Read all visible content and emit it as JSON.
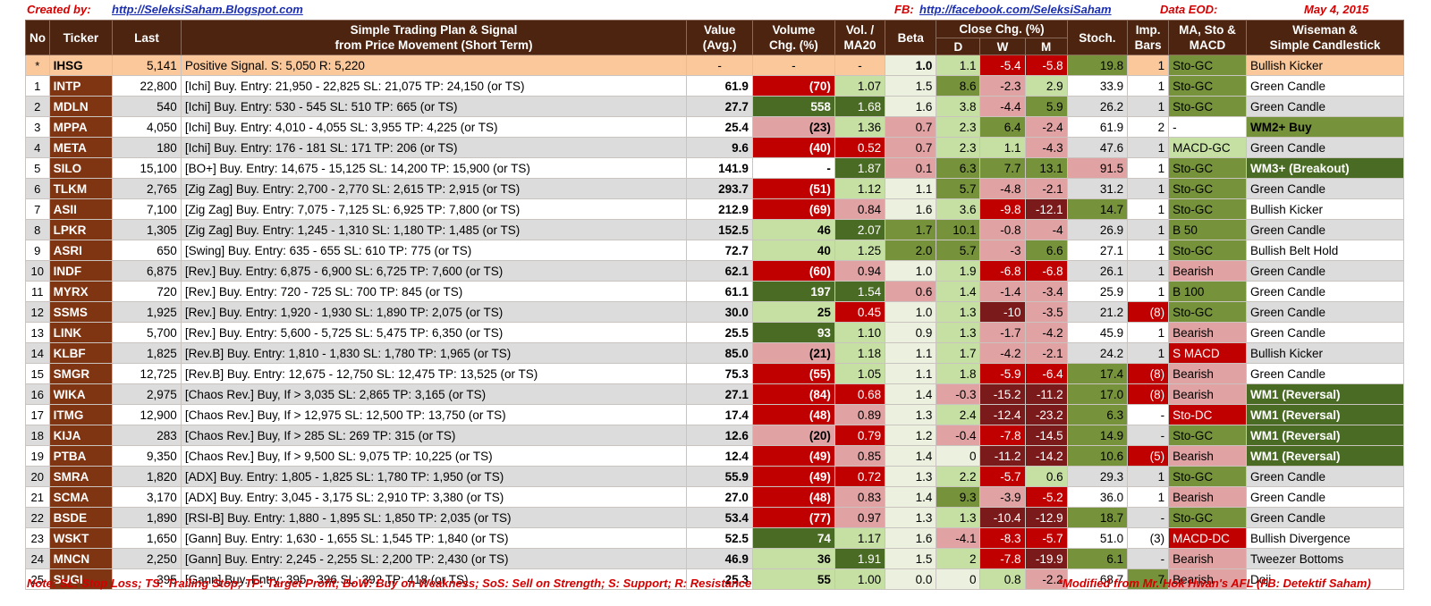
{
  "header": {
    "created_label": "Created by:",
    "blog_link": "http://SeleksiSaham.Blogspot.com",
    "fb_label": "FB:",
    "fb_link": "http://facebook.com/SeleksiSaham",
    "data_label": "Data EOD:",
    "date": "May 4, 2015"
  },
  "columns": {
    "no": "No",
    "ticker": "Ticker",
    "last": "Last",
    "plan1": "Simple Trading Plan & Signal",
    "plan2": "from Price Movement (Short Term)",
    "value1": "Value",
    "value2": "(Avg.)",
    "volume1": "Volume",
    "volume2": "Chg. (%)",
    "vol1": "Vol. /",
    "vol2": "MA20",
    "beta": "Beta",
    "close": "Close Chg. (%)",
    "d": "D",
    "w": "W",
    "m": "M",
    "stoch": "Stoch.",
    "imp1": "Imp.",
    "imp2": "Bars",
    "ma1": "MA, Sto &",
    "ma2": "MACD",
    "wise1": "Wiseman  &",
    "wise2": "Simple Candlestick"
  },
  "colors": {
    "header_bg": "#4d2410",
    "ticker_bg": "#7f3412",
    "index_bg": "#fac89a",
    "red_strong": "#c00000",
    "red_mid": "#e0a2a2",
    "dark_red": "#7a1a1a",
    "green_strong": "#4a6b24",
    "green_mid": "#76933c",
    "green_light": "#c6e0a4",
    "green_lighter": "#ebf1de",
    "row_alt": "#dcdcdc"
  },
  "rows": [
    {
      "no": "*",
      "ticker": "IHSG",
      "last": "5,141",
      "plan": "Positive Signal.  S:  5,050  R:  5,220",
      "value": "-",
      "volume": "-",
      "vol": "-",
      "beta": "1.0",
      "d": "1.1",
      "w": "-5.4",
      "m": "-5.8",
      "stoch": "19.8",
      "imp": "1",
      "ma": "Sto-GC",
      "wise": "Bullish Kicker"
    },
    {
      "no": "1",
      "ticker": "INTP",
      "last": "22,800",
      "plan": "[Ichi] Buy.  Entry: 21,950 - 22,825  SL: 21,075  TP: 24,150 (or TS)",
      "value": "61.9",
      "volume": "(70)",
      "vol": "1.07",
      "beta": "1.5",
      "d": "8.6",
      "w": "-2.3",
      "m": "2.9",
      "stoch": "33.9",
      "imp": "1",
      "ma": "Sto-GC",
      "wise": "Green Candle"
    },
    {
      "no": "2",
      "ticker": "MDLN",
      "last": "540",
      "plan": "[Ichi] Buy.  Entry:   530 -   545  SL:   510  TP:   665 (or TS)",
      "value": "27.7",
      "volume": "558",
      "vol": "1.68",
      "beta": "1.6",
      "d": "3.8",
      "w": "-4.4",
      "m": "5.9",
      "stoch": "26.2",
      "imp": "1",
      "ma": "Sto-GC",
      "wise": "Green Candle"
    },
    {
      "no": "3",
      "ticker": "MPPA",
      "last": "4,050",
      "plan": "[Ichi] Buy.  Entry:  4,010 -  4,055  SL:  3,955  TP:  4,225 (or TS)",
      "value": "25.4",
      "volume": "(23)",
      "vol": "1.36",
      "beta": "0.7",
      "d": "2.3",
      "w": "6.4",
      "m": "-2.4",
      "stoch": "61.9",
      "imp": "2",
      "ma": "-",
      "wise": "WM2+ Buy"
    },
    {
      "no": "4",
      "ticker": "META",
      "last": "180",
      "plan": "[Ichi] Buy.  Entry:   176 -   181  SL:   171  TP:   206 (or TS)",
      "value": "9.6",
      "volume": "(40)",
      "vol": "0.52",
      "beta": "0.7",
      "d": "2.3",
      "w": "1.1",
      "m": "-4.3",
      "stoch": "47.6",
      "imp": "1",
      "ma": "MACD-GC",
      "wise": "Green Candle"
    },
    {
      "no": "5",
      "ticker": "SILO",
      "last": "15,100",
      "plan": "[BO+] Buy.  Entry: 14,675 - 15,125  SL: 14,200  TP: 15,900 (or TS)",
      "value": "141.9",
      "volume": "-",
      "vol": "1.87",
      "beta": "0.1",
      "d": "6.3",
      "w": "7.7",
      "m": "13.1",
      "stoch": "91.5",
      "imp": "1",
      "ma": "Sto-GC",
      "wise": "WM3+ (Breakout)"
    },
    {
      "no": "6",
      "ticker": "TLKM",
      "last": "2,765",
      "plan": "[Zig Zag] Buy.  Entry:  2,700 -  2,770  SL:  2,615  TP:  2,915 (or TS)",
      "value": "293.7",
      "volume": "(51)",
      "vol": "1.12",
      "beta": "1.1",
      "d": "5.7",
      "w": "-4.8",
      "m": "-2.1",
      "stoch": "31.2",
      "imp": "1",
      "ma": "Sto-GC",
      "wise": "Green Candle"
    },
    {
      "no": "7",
      "ticker": "ASII",
      "last": "7,100",
      "plan": "[Zig Zag] Buy.  Entry:  7,075 -  7,125  SL:  6,925  TP:  7,800 (or TS)",
      "value": "212.9",
      "volume": "(69)",
      "vol": "0.84",
      "beta": "1.6",
      "d": "3.6",
      "w": "-9.8",
      "m": "-12.1",
      "stoch": "14.7",
      "imp": "1",
      "ma": "Sto-GC",
      "wise": "Bullish Kicker"
    },
    {
      "no": "8",
      "ticker": "LPKR",
      "last": "1,305",
      "plan": "[Zig Zag] Buy.  Entry:  1,245 -  1,310  SL:  1,180  TP:  1,485 (or TS)",
      "value": "152.5",
      "volume": "46",
      "vol": "2.07",
      "beta": "1.7",
      "d": "10.1",
      "w": "-0.8",
      "m": "-4",
      "stoch": "26.9",
      "imp": "1",
      "ma": "B 50",
      "wise": "Green Candle"
    },
    {
      "no": "9",
      "ticker": "ASRI",
      "last": "650",
      "plan": "[Swing] Buy.  Entry:   635 -   655  SL:   610  TP:   775 (or TS)",
      "value": "72.7",
      "volume": "40",
      "vol": "1.25",
      "beta": "2.0",
      "d": "5.7",
      "w": "-3",
      "m": "6.6",
      "stoch": "27.1",
      "imp": "1",
      "ma": "Sto-GC",
      "wise": "Bullish Belt Hold"
    },
    {
      "no": "10",
      "ticker": "INDF",
      "last": "6,875",
      "plan": "[Rev.] Buy.  Entry:  6,875 -  6,900  SL:  6,725  TP:  7,600 (or TS)",
      "value": "62.1",
      "volume": "(60)",
      "vol": "0.94",
      "beta": "1.0",
      "d": "1.9",
      "w": "-6.8",
      "m": "-6.8",
      "stoch": "26.1",
      "imp": "1",
      "ma": "Bearish",
      "wise": "Green Candle"
    },
    {
      "no": "11",
      "ticker": "MYRX",
      "last": "720",
      "plan": "[Rev.] Buy.  Entry:   720 -   725  SL:   700  TP:   845 (or TS)",
      "value": "61.1",
      "volume": "197",
      "vol": "1.54",
      "beta": "0.6",
      "d": "1.4",
      "w": "-1.4",
      "m": "-3.4",
      "stoch": "25.9",
      "imp": "1",
      "ma": "B 100",
      "wise": "Green Candle"
    },
    {
      "no": "12",
      "ticker": "SSMS",
      "last": "1,925",
      "plan": "[Rev.] Buy.  Entry:  1,920 -  1,930  SL:  1,890  TP:  2,075 (or TS)",
      "value": "30.0",
      "volume": "25",
      "vol": "0.45",
      "beta": "1.0",
      "d": "1.3",
      "w": "-10",
      "m": "-3.5",
      "stoch": "21.2",
      "imp": "(8)",
      "ma": "Sto-GC",
      "wise": "Green Candle"
    },
    {
      "no": "13",
      "ticker": "LINK",
      "last": "5,700",
      "plan": "[Rev.] Buy.  Entry:  5,600 -  5,725  SL:  5,475  TP:  6,350 (or TS)",
      "value": "25.5",
      "volume": "93",
      "vol": "1.10",
      "beta": "0.9",
      "d": "1.3",
      "w": "-1.7",
      "m": "-4.2",
      "stoch": "45.9",
      "imp": "1",
      "ma": "Bearish",
      "wise": "Green Candle"
    },
    {
      "no": "14",
      "ticker": "KLBF",
      "last": "1,825",
      "plan": "[Rev.B] Buy.  Entry:  1,810 -  1,830  SL:  1,780  TP:  1,965 (or TS)",
      "value": "85.0",
      "volume": "(21)",
      "vol": "1.18",
      "beta": "1.1",
      "d": "1.7",
      "w": "-4.2",
      "m": "-2.1",
      "stoch": "24.2",
      "imp": "1",
      "ma": "S MACD",
      "wise": "Bullish Kicker"
    },
    {
      "no": "15",
      "ticker": "SMGR",
      "last": "12,725",
      "plan": "[Rev.B] Buy.  Entry: 12,675 - 12,750  SL: 12,475  TP: 13,525 (or TS)",
      "value": "75.3",
      "volume": "(55)",
      "vol": "1.05",
      "beta": "1.1",
      "d": "1.8",
      "w": "-5.9",
      "m": "-6.4",
      "stoch": "17.4",
      "imp": "(8)",
      "ma": "Bearish",
      "wise": "Green Candle"
    },
    {
      "no": "16",
      "ticker": "WIKA",
      "last": "2,975",
      "plan": "[Chaos Rev.] Buy, If >  3,035  SL:  2,865  TP:  3,165 (or TS)",
      "value": "27.1",
      "volume": "(84)",
      "vol": "0.68",
      "beta": "1.4",
      "d": "-0.3",
      "w": "-15.2",
      "m": "-11.2",
      "stoch": "17.0",
      "imp": "(8)",
      "ma": "Bearish",
      "wise": "WM1 (Reversal)"
    },
    {
      "no": "17",
      "ticker": "ITMG",
      "last": "12,900",
      "plan": "[Chaos Rev.] Buy, If > 12,975  SL: 12,500  TP: 13,750 (or TS)",
      "value": "17.4",
      "volume": "(48)",
      "vol": "0.89",
      "beta": "1.3",
      "d": "2.4",
      "w": "-12.4",
      "m": "-23.2",
      "stoch": "6.3",
      "imp": "-",
      "ma": "Sto-DC",
      "wise": "WM1 (Reversal)"
    },
    {
      "no": "18",
      "ticker": "KIJA",
      "last": "283",
      "plan": "[Chaos Rev.] Buy, If >   285  SL:   269  TP:   315 (or TS)",
      "value": "12.6",
      "volume": "(20)",
      "vol": "0.79",
      "beta": "1.2",
      "d": "-0.4",
      "w": "-7.8",
      "m": "-14.5",
      "stoch": "14.9",
      "imp": "-",
      "ma": "Sto-GC",
      "wise": "WM1 (Reversal)"
    },
    {
      "no": "19",
      "ticker": "PTBA",
      "last": "9,350",
      "plan": "[Chaos Rev.] Buy, If >  9,500  SL:  9,075  TP: 10,225 (or TS)",
      "value": "12.4",
      "volume": "(49)",
      "vol": "0.85",
      "beta": "1.4",
      "d": "0",
      "w": "-11.2",
      "m": "-14.2",
      "stoch": "10.6",
      "imp": "(5)",
      "ma": "Bearish",
      "wise": "WM1 (Reversal)"
    },
    {
      "no": "20",
      "ticker": "SMRA",
      "last": "1,820",
      "plan": "[ADX] Buy.  Entry:  1,805 -  1,825  SL:  1,780  TP:  1,950 (or TS)",
      "value": "55.9",
      "volume": "(49)",
      "vol": "0.72",
      "beta": "1.3",
      "d": "2.2",
      "w": "-5.7",
      "m": "0.6",
      "stoch": "29.3",
      "imp": "1",
      "ma": "Sto-GC",
      "wise": "Green Candle"
    },
    {
      "no": "21",
      "ticker": "SCMA",
      "last": "3,170",
      "plan": "[ADX] Buy.  Entry:  3,045 -  3,175  SL:  2,910  TP:  3,380 (or TS)",
      "value": "27.0",
      "volume": "(48)",
      "vol": "0.83",
      "beta": "1.4",
      "d": "9.3",
      "w": "-3.9",
      "m": "-5.2",
      "stoch": "36.0",
      "imp": "1",
      "ma": "Bearish",
      "wise": "Green Candle"
    },
    {
      "no": "22",
      "ticker": "BSDE",
      "last": "1,890",
      "plan": "[RSI-B] Buy.  Entry:  1,880 -  1,895  SL:  1,850  TP:  2,035 (or TS)",
      "value": "53.4",
      "volume": "(77)",
      "vol": "0.97",
      "beta": "1.3",
      "d": "1.3",
      "w": "-10.4",
      "m": "-12.9",
      "stoch": "18.7",
      "imp": "-",
      "ma": "Sto-GC",
      "wise": "Green Candle"
    },
    {
      "no": "23",
      "ticker": "WSKT",
      "last": "1,650",
      "plan": "[Gann] Buy.  Entry:  1,630 -  1,655  SL:  1,545  TP:  1,840 (or TS)",
      "value": "52.5",
      "volume": "74",
      "vol": "1.17",
      "beta": "1.6",
      "d": "-4.1",
      "w": "-8.3",
      "m": "-5.7",
      "stoch": "51.0",
      "imp": "(3)",
      "ma": "MACD-DC",
      "wise": "Bullish Divergence"
    },
    {
      "no": "24",
      "ticker": "MNCN",
      "last": "2,250",
      "plan": "[Gann] Buy.  Entry:  2,245 -  2,255  SL:  2,200  TP:  2,430 (or TS)",
      "value": "46.9",
      "volume": "36",
      "vol": "1.91",
      "beta": "1.5",
      "d": "2",
      "w": "-7.8",
      "m": "-19.9",
      "stoch": "6.1",
      "imp": "-",
      "ma": "Bearish",
      "wise": "Tweezer Bottoms"
    },
    {
      "no": "25",
      "ticker": "SUGI",
      "last": "395",
      "plan": "[Gann] Buy.  Entry:   395 -   396  SL:   392  TP:   418 (or TS)",
      "value": "25.3",
      "volume": "55",
      "vol": "1.00",
      "beta": "0.0",
      "d": "0",
      "w": "0.8",
      "m": "-2.2",
      "stoch": "68.7",
      "imp": "7",
      "ma": "Bearish",
      "wise": "Doji"
    }
  ],
  "footer": {
    "note": "Note:  SL: Stop Loss; TS: Trailing Stop; TP: Target Profit; BoW: Buy on Weakness; SoS: Sell on Strength; S: Support; R: Resistance",
    "credit": "*Modified from Mr. Hok Hwan's AFL (FB: Detektif Saham)"
  }
}
